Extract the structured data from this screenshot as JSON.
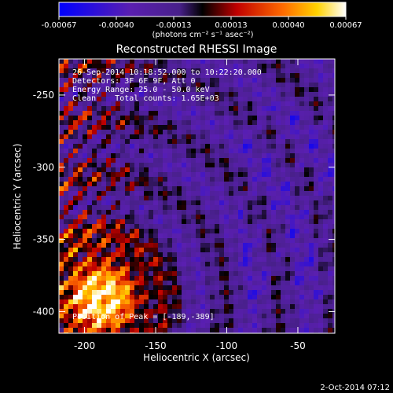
{
  "chart_data": {
    "type": "heatmap",
    "title": "Reconstructed RHESSI Image",
    "xlabel": "Heliocentric X (arcsec)",
    "ylabel": "Heliocentric Y (arcsec)",
    "xlim": [
      -218,
      -24
    ],
    "ylim": [
      -415,
      -225
    ],
    "x_ticks": [
      {
        "value": -200,
        "label": "-200"
      },
      {
        "value": -150,
        "label": "-150"
      },
      {
        "value": -100,
        "label": "-100"
      },
      {
        "value": -50,
        "label": "-50"
      }
    ],
    "y_ticks": [
      {
        "value": -250,
        "label": "-250"
      },
      {
        "value": -300,
        "label": "-300"
      },
      {
        "value": -350,
        "label": "-350"
      },
      {
        "value": -400,
        "label": "-400"
      }
    ],
    "colorbar": {
      "range": [
        -0.00067,
        0.00067
      ],
      "tick_labels": [
        "-0.00067",
        "-0.00040",
        "-0.00013",
        "0.00013",
        "0.00040",
        "0.00067"
      ],
      "unit_label": "(photons cm⁻² s⁻¹ asec⁻²)"
    },
    "peak_x": -189,
    "peak_y": -389,
    "grid": false
  },
  "info": {
    "time_range": "26-Sep-2014 10:18:52.000 to 10:22:20.000",
    "detectors": "Detectors: 3F 6F 9F, Att 0",
    "energy": "Energy Range: 25.0 - 50.0 keV",
    "clean": "Clean    Total counts: 1.65E+03",
    "peak": "Position of Peak = [-189,-389]"
  },
  "footer_date": "2-Oct-2014 07:12",
  "colors": {
    "background": "#000000",
    "text": "#ffffff",
    "colormap": [
      "#0000ff",
      "#5a1fb0",
      "#48208a",
      "#000000",
      "#c00000",
      "#ff6a00",
      "#ffd200",
      "#ffffff"
    ]
  }
}
